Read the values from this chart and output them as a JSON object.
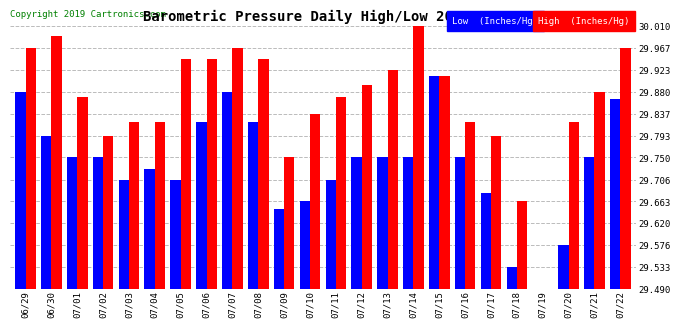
{
  "title": "Barometric Pressure Daily High/Low 20190723",
  "copyright": "Copyright 2019 Cartronics.com",
  "legend_low": "Low  (Inches/Hg)",
  "legend_high": "High  (Inches/Hg)",
  "dates": [
    "06/29",
    "06/30",
    "07/01",
    "07/02",
    "07/03",
    "07/04",
    "07/05",
    "07/06",
    "07/07",
    "07/08",
    "07/09",
    "07/10",
    "07/11",
    "07/12",
    "07/13",
    "07/14",
    "07/15",
    "07/16",
    "07/17",
    "07/18",
    "07/19",
    "07/20",
    "07/21",
    "07/22"
  ],
  "low": [
    29.88,
    29.793,
    29.75,
    29.75,
    29.706,
    29.728,
    29.706,
    29.82,
    29.88,
    29.82,
    29.648,
    29.663,
    29.706,
    29.75,
    29.75,
    29.75,
    29.912,
    29.75,
    29.679,
    29.533,
    29.49,
    29.576,
    29.75,
    29.866
  ],
  "high": [
    29.967,
    29.99,
    29.869,
    29.793,
    29.82,
    29.82,
    29.946,
    29.946,
    29.967,
    29.946,
    29.75,
    29.837,
    29.869,
    29.893,
    29.923,
    30.01,
    29.912,
    29.82,
    29.793,
    29.663,
    29.49,
    29.82,
    29.88,
    29.967
  ],
  "ylim_min": 29.49,
  "ylim_max": 30.01,
  "yticks": [
    29.49,
    29.533,
    29.576,
    29.62,
    29.663,
    29.706,
    29.75,
    29.793,
    29.837,
    29.88,
    29.923,
    29.967,
    30.01
  ],
  "bar_width": 0.4,
  "low_color": "#0000ff",
  "high_color": "#ff0000",
  "bg_color": "#ffffff",
  "grid_color": "#bbbbbb",
  "title_fontsize": 10,
  "tick_fontsize": 6.5,
  "copyright_fontsize": 6.5
}
